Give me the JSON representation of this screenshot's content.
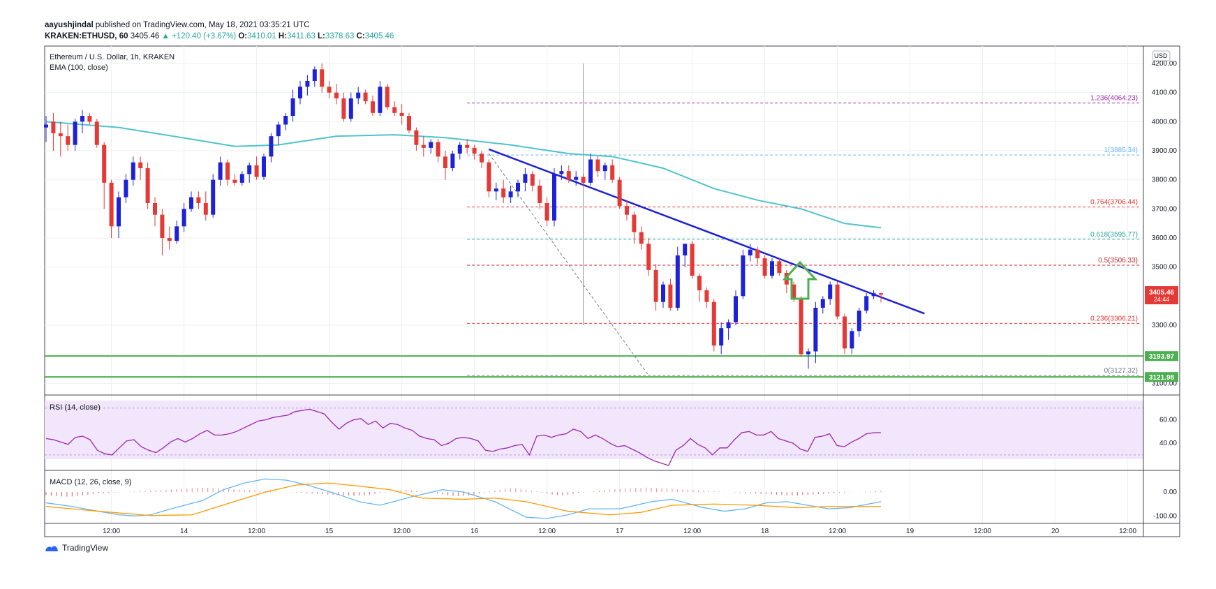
{
  "header": {
    "publisher": "aayushjindal",
    "published_text": " published on TradingView.com, May 18, 2021 03:35:21 UTC",
    "symbol": "KRAKEN:ETHUSD, 60",
    "last": "3405.46",
    "change": "+120.40 (+3.67%)",
    "o_label": "O:",
    "o_value": "3410.01",
    "h_label": "H:",
    "h_value": "3411.63",
    "l_label": "L:",
    "l_value": "3378.63",
    "c_label": "C:",
    "c_value": "3405.46"
  },
  "chart_data": {
    "type": "candlestick",
    "title": "Ethereum / U.S. Dollar, 1h, KRAKEN",
    "indicator_label": "EMA (100, close)",
    "currency_label": "USD",
    "y_ticks": [
      "4200.00",
      "4100.00",
      "4000.00",
      "3900.00",
      "3800.00",
      "3700.00",
      "3600.00",
      "3500.00",
      "3300.00",
      "3100.00"
    ],
    "ylim": [
      3060,
      4260
    ],
    "x_ticks": [
      {
        "label": "12:00",
        "idx": 9
      },
      {
        "label": "14",
        "idx": 19
      },
      {
        "label": "12:00",
        "idx": 29
      },
      {
        "label": "15",
        "idx": 39
      },
      {
        "label": "12:00",
        "idx": 49
      },
      {
        "label": "16",
        "idx": 59
      },
      {
        "label": "12:00",
        "idx": 69
      },
      {
        "label": "17",
        "idx": 79
      },
      {
        "label": "12:00",
        "idx": 89
      },
      {
        "label": "18",
        "idx": 99
      },
      {
        "label": "12:00",
        "idx": 109
      },
      {
        "label": "19",
        "idx": 119
      },
      {
        "label": "12:00",
        "idx": 129
      },
      {
        "label": "20",
        "idx": 139
      },
      {
        "label": "12:00",
        "idx": 149
      }
    ],
    "ohlc": [
      [
        3980,
        4020,
        3930,
        3990
      ],
      [
        4000,
        4030,
        3900,
        3960
      ],
      [
        3960,
        4000,
        3880,
        3950
      ],
      [
        3950,
        3990,
        3900,
        3920
      ],
      [
        3920,
        4010,
        3900,
        4000
      ],
      [
        4000,
        4040,
        3960,
        4020
      ],
      [
        4020,
        4030,
        3990,
        4000
      ],
      [
        4000,
        4010,
        3910,
        3920
      ],
      [
        3920,
        3930,
        3700,
        3790
      ],
      [
        3790,
        3800,
        3600,
        3640
      ],
      [
        3640,
        3760,
        3600,
        3740
      ],
      [
        3740,
        3820,
        3720,
        3800
      ],
      [
        3800,
        3880,
        3780,
        3860
      ],
      [
        3860,
        3880,
        3800,
        3840
      ],
      [
        3840,
        3860,
        3700,
        3720
      ],
      [
        3720,
        3740,
        3640,
        3680
      ],
      [
        3680,
        3700,
        3540,
        3600
      ],
      [
        3600,
        3640,
        3560,
        3590
      ],
      [
        3590,
        3660,
        3580,
        3640
      ],
      [
        3640,
        3720,
        3620,
        3700
      ],
      [
        3700,
        3760,
        3690,
        3740
      ],
      [
        3740,
        3760,
        3700,
        3720
      ],
      [
        3720,
        3760,
        3660,
        3680
      ],
      [
        3680,
        3820,
        3670,
        3800
      ],
      [
        3800,
        3880,
        3780,
        3860
      ],
      [
        3860,
        3870,
        3780,
        3800
      ],
      [
        3800,
        3820,
        3780,
        3790
      ],
      [
        3790,
        3830,
        3780,
        3820
      ],
      [
        3820,
        3860,
        3790,
        3850
      ],
      [
        3850,
        3880,
        3800,
        3810
      ],
      [
        3810,
        3890,
        3800,
        3880
      ],
      [
        3880,
        3960,
        3860,
        3950
      ],
      [
        3950,
        4000,
        3920,
        3990
      ],
      [
        3990,
        4030,
        3970,
        4020
      ],
      [
        4020,
        4110,
        4000,
        4080
      ],
      [
        4080,
        4140,
        4060,
        4120
      ],
      [
        4120,
        4160,
        4090,
        4140
      ],
      [
        4140,
        4190,
        4120,
        4180
      ],
      [
        4180,
        4200,
        4100,
        4120
      ],
      [
        4120,
        4140,
        4080,
        4100
      ],
      [
        4100,
        4130,
        4060,
        4080
      ],
      [
        4080,
        4100,
        4000,
        4010
      ],
      [
        4010,
        4100,
        4000,
        4080
      ],
      [
        4080,
        4120,
        4060,
        4100
      ],
      [
        4100,
        4110,
        4060,
        4070
      ],
      [
        4070,
        4090,
        4020,
        4030
      ],
      [
        4030,
        4140,
        4020,
        4120
      ],
      [
        4120,
        4130,
        4040,
        4050
      ],
      [
        4050,
        4070,
        4020,
        4030
      ],
      [
        4030,
        4060,
        3990,
        4020
      ],
      [
        4020,
        4030,
        3960,
        3970
      ],
      [
        3970,
        3980,
        3900,
        3920
      ],
      [
        3920,
        3950,
        3880,
        3910
      ],
      [
        3910,
        3940,
        3890,
        3930
      ],
      [
        3930,
        3940,
        3860,
        3880
      ],
      [
        3880,
        3900,
        3800,
        3840
      ],
      [
        3840,
        3900,
        3830,
        3890
      ],
      [
        3890,
        3930,
        3870,
        3920
      ],
      [
        3920,
        3940,
        3890,
        3910
      ],
      [
        3910,
        3920,
        3870,
        3890
      ],
      [
        3890,
        3900,
        3840,
        3860
      ],
      [
        3860,
        3870,
        3740,
        3760
      ],
      [
        3760,
        3790,
        3730,
        3770
      ],
      [
        3770,
        3800,
        3720,
        3740
      ],
      [
        3740,
        3780,
        3720,
        3760
      ],
      [
        3760,
        3800,
        3740,
        3790
      ],
      [
        3790,
        3840,
        3760,
        3820
      ],
      [
        3820,
        3830,
        3760,
        3780
      ],
      [
        3780,
        3800,
        3700,
        3720
      ],
      [
        3720,
        3740,
        3640,
        3660
      ],
      [
        3660,
        3840,
        3640,
        3820
      ],
      [
        3820,
        3850,
        3800,
        3830
      ],
      [
        3830,
        3850,
        3790,
        3800
      ],
      [
        3800,
        3830,
        3780,
        3810
      ],
      [
        3810,
        3820,
        3780,
        3790
      ],
      [
        3790,
        3890,
        3780,
        3870
      ],
      [
        3870,
        3880,
        3810,
        3830
      ],
      [
        3830,
        3860,
        3800,
        3850
      ],
      [
        3850,
        3870,
        3790,
        3800
      ],
      [
        3800,
        3810,
        3700,
        3710
      ],
      [
        3710,
        3730,
        3660,
        3680
      ],
      [
        3680,
        3690,
        3580,
        3620
      ],
      [
        3620,
        3640,
        3560,
        3580
      ],
      [
        3580,
        3600,
        3470,
        3490
      ],
      [
        3490,
        3510,
        3350,
        3380
      ],
      [
        3380,
        3450,
        3360,
        3440
      ],
      [
        3440,
        3460,
        3350,
        3360
      ],
      [
        3360,
        3570,
        3350,
        3540
      ],
      [
        3540,
        3580,
        3500,
        3580
      ],
      [
        3580,
        3590,
        3460,
        3470
      ],
      [
        3470,
        3480,
        3380,
        3420
      ],
      [
        3420,
        3430,
        3360,
        3380
      ],
      [
        3380,
        3390,
        3210,
        3230
      ],
      [
        3230,
        3310,
        3200,
        3290
      ],
      [
        3290,
        3320,
        3250,
        3310
      ],
      [
        3310,
        3420,
        3300,
        3400
      ],
      [
        3400,
        3560,
        3390,
        3540
      ],
      [
        3540,
        3580,
        3520,
        3560
      ],
      [
        3560,
        3570,
        3510,
        3530
      ],
      [
        3530,
        3540,
        3460,
        3470
      ],
      [
        3470,
        3530,
        3460,
        3520
      ],
      [
        3520,
        3530,
        3470,
        3480
      ],
      [
        3480,
        3490,
        3410,
        3440
      ],
      [
        3440,
        3450,
        3380,
        3390
      ],
      [
        3390,
        3400,
        3190,
        3200
      ],
      [
        3200,
        3220,
        3150,
        3210
      ],
      [
        3210,
        3380,
        3170,
        3360
      ],
      [
        3360,
        3400,
        3340,
        3390
      ],
      [
        3390,
        3450,
        3370,
        3440
      ],
      [
        3440,
        3450,
        3320,
        3330
      ],
      [
        3330,
        3340,
        3200,
        3220
      ],
      [
        3220,
        3290,
        3200,
        3280
      ],
      [
        3280,
        3360,
        3260,
        3350
      ],
      [
        3350,
        3410,
        3340,
        3400
      ],
      [
        3400,
        3420,
        3390,
        3410
      ],
      [
        3410,
        3412,
        3378,
        3405
      ]
    ],
    "ema": [
      [
        0,
        4000
      ],
      [
        10,
        3980
      ],
      [
        20,
        3940
      ],
      [
        26,
        3915
      ],
      [
        32,
        3920
      ],
      [
        40,
        3950
      ],
      [
        48,
        3955
      ],
      [
        55,
        3945
      ],
      [
        64,
        3920
      ],
      [
        72,
        3890
      ],
      [
        78,
        3880
      ],
      [
        85,
        3840
      ],
      [
        92,
        3770
      ],
      [
        98,
        3730
      ],
      [
        104,
        3700
      ],
      [
        110,
        3650
      ],
      [
        115,
        3635
      ]
    ],
    "fib_levels": [
      {
        "label": "1.236(4064.23)",
        "value": 4064.23,
        "color": "#9c27b0"
      },
      {
        "label": "1(3885.34)",
        "value": 3885.34,
        "color": "#64b5f6"
      },
      {
        "label": "0.764(3706.44)",
        "value": 3706.44,
        "color": "#e53935"
      },
      {
        "label": "0.618(3595.77)",
        "value": 3595.77,
        "color": "#26a69a"
      },
      {
        "label": "0.5(3506.33)",
        "value": 3506.33,
        "color": "#c62828"
      },
      {
        "label": "0.236(3306.21)",
        "value": 3306.21,
        "color": "#e53935"
      },
      {
        "label": "0(3127.32)",
        "value": 3127.32,
        "color": "#787b86"
      }
    ],
    "horizontal_lines": [
      {
        "label": "3193.97",
        "value": 3193.97,
        "color": "#4caf50"
      },
      {
        "label": "3121.98",
        "value": 3121.98,
        "color": "#4caf50"
      }
    ],
    "trendline": {
      "from": [
        61,
        3905
      ],
      "to": [
        121,
        3340
      ],
      "color": "#1e22d6"
    },
    "last_price_label": "3405.46",
    "countdown_label": "24:44",
    "rsi": {
      "label": "RSI (14, close)",
      "ticks": [
        "60.00",
        "40.00"
      ],
      "ylim": [
        18,
        80
      ],
      "band": [
        30,
        70
      ],
      "values": [
        44,
        43,
        41,
        39,
        45,
        46,
        43,
        34,
        31,
        30,
        36,
        42,
        43,
        37,
        34,
        32,
        36,
        41,
        44,
        41,
        44,
        48,
        51,
        47,
        47,
        48,
        50,
        53,
        56,
        59,
        60,
        62,
        63,
        64,
        67,
        68,
        69,
        67,
        65,
        58,
        52,
        57,
        60,
        61,
        56,
        59,
        53,
        57,
        56,
        53,
        51,
        46,
        44,
        43,
        38,
        40,
        44,
        45,
        44,
        42,
        34,
        33,
        35,
        36,
        38,
        39,
        30,
        46,
        47,
        45,
        47,
        48,
        52,
        50,
        44,
        47,
        44,
        40,
        37,
        38,
        35,
        32,
        28,
        25,
        23,
        21,
        34,
        38,
        44,
        39,
        36,
        30,
        36,
        36,
        43,
        49,
        50,
        47,
        47,
        50,
        44,
        42,
        40,
        35,
        33,
        45,
        46,
        48,
        38,
        37,
        41,
        44,
        48,
        49,
        49
      ]
    },
    "macd": {
      "label": "MACD (12, 26, close, 9)",
      "ticks": [
        "0.00",
        "-100.00"
      ],
      "ylim": [
        -125,
        85
      ],
      "macd_line": [
        [
          0,
          -45
        ],
        [
          5,
          -60
        ],
        [
          10,
          -80
        ],
        [
          14,
          -95
        ],
        [
          17,
          -100
        ],
        [
          20,
          -95
        ],
        [
          24,
          -70
        ],
        [
          30,
          -35
        ],
        [
          34,
          10
        ],
        [
          38,
          38
        ],
        [
          42,
          55
        ],
        [
          46,
          50
        ],
        [
          50,
          30
        ],
        [
          56,
          -10
        ],
        [
          60,
          -40
        ],
        [
          64,
          -55
        ],
        [
          70,
          -20
        ],
        [
          76,
          10
        ],
        [
          80,
          0
        ],
        [
          86,
          -40
        ],
        [
          92,
          -105
        ],
        [
          96,
          -110
        ],
        [
          100,
          -95
        ],
        [
          104,
          -70
        ],
        [
          110,
          -70
        ],
        [
          116,
          -40
        ],
        [
          120,
          -30
        ],
        [
          126,
          -65
        ],
        [
          130,
          -80
        ],
        [
          134,
          -70
        ],
        [
          138,
          -45
        ],
        [
          142,
          -40
        ],
        [
          146,
          -55
        ],
        [
          150,
          -70
        ],
        [
          154,
          -65
        ],
        [
          160,
          -40
        ]
      ],
      "signal_line": [
        [
          0,
          -60
        ],
        [
          10,
          -80
        ],
        [
          20,
          -98
        ],
        [
          28,
          -95
        ],
        [
          36,
          -40
        ],
        [
          42,
          0
        ],
        [
          48,
          30
        ],
        [
          54,
          38
        ],
        [
          60,
          25
        ],
        [
          66,
          10
        ],
        [
          72,
          -25
        ],
        [
          80,
          -30
        ],
        [
          86,
          -25
        ],
        [
          92,
          -40
        ],
        [
          100,
          -80
        ],
        [
          108,
          -95
        ],
        [
          114,
          -85
        ],
        [
          120,
          -55
        ],
        [
          128,
          -50
        ],
        [
          136,
          -55
        ],
        [
          144,
          -65
        ],
        [
          150,
          -60
        ],
        [
          160,
          -60
        ]
      ],
      "hist": [
        -20,
        -25,
        -28,
        -30,
        -32,
        -30,
        -26,
        -22,
        -18,
        -14,
        -10,
        -8,
        -6,
        -4,
        -2,
        0,
        2,
        4,
        6,
        8,
        10,
        12,
        14,
        16,
        18,
        20,
        22,
        24,
        26,
        28,
        30,
        30,
        28,
        26,
        24,
        22,
        20,
        18,
        16,
        14,
        12,
        10,
        8,
        6,
        4,
        2,
        0,
        -2,
        -4,
        -6,
        -8,
        -10,
        -12,
        -14,
        -16,
        -18,
        -20,
        -22,
        -24,
        -26,
        -24,
        -22,
        -18,
        -12,
        -6,
        -2,
        4,
        8,
        12,
        14,
        12,
        10,
        6,
        2,
        -4,
        -10,
        -16,
        -22,
        -26,
        -28,
        -26,
        -24,
        -18,
        -10,
        -4,
        4,
        10,
        18,
        24,
        28,
        26,
        22,
        18,
        10,
        4,
        -4,
        -10,
        -16,
        -20,
        -24,
        -18,
        -12,
        -6,
        -2,
        2,
        6,
        10,
        14,
        18,
        20,
        22,
        24,
        26,
        28,
        30,
        32,
        30,
        28,
        26,
        24,
        22,
        20,
        18,
        16,
        14,
        12,
        10,
        8,
        6,
        4,
        2,
        0,
        -2,
        -4,
        -6,
        -8,
        -10,
        -12,
        -14,
        -16,
        -18,
        -20,
        -22,
        -24,
        -22,
        -20,
        -18,
        -16,
        -14,
        -12,
        -10,
        -8,
        -6,
        -4,
        -2,
        0,
        2,
        4,
        6,
        8,
        10
      ]
    }
  },
  "footer": {
    "brand": "TradingView"
  }
}
